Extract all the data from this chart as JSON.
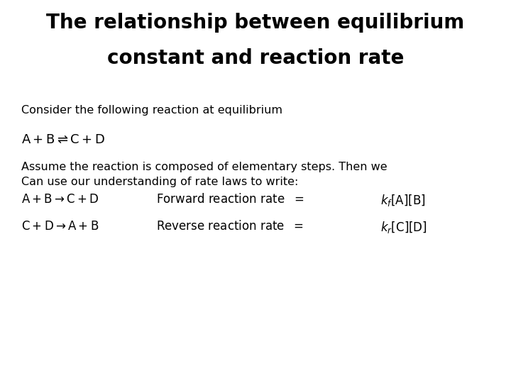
{
  "title_line1": "The relationship between equilibrium",
  "title_line2": "constant and reaction rate",
  "title_fontsize": 20,
  "subtitle": "Consider the following reaction at equilibrium",
  "subtitle_fontsize": 11.5,
  "body_text_line1": "Assume the reaction is composed of elementary steps. Then we",
  "body_text_line2": "Can use our understanding of rate laws to write:",
  "body_fontsize": 11.5,
  "eq_fontsize": 13,
  "rxn_fontsize": 12,
  "background_color": "#ffffff",
  "text_color": "#000000"
}
